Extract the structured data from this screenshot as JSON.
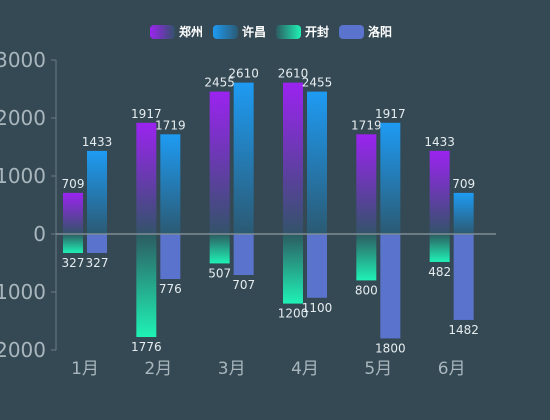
{
  "chart_data": {
    "type": "bar",
    "categories": [
      "1月",
      "2月",
      "3月",
      "4月",
      "5月",
      "6月"
    ],
    "ylim": [
      -2000,
      3000
    ],
    "yticks": [
      3000,
      2000,
      1000,
      0,
      -1000,
      -2000
    ],
    "ytick_labels": [
      "3000",
      "2000",
      "1000",
      "0",
      "1000",
      "2000"
    ],
    "legend_position": "top-center",
    "grid": false,
    "series": [
      {
        "name": "郑州",
        "values": [
          709,
          1917,
          2455,
          2610,
          1719,
          1433
        ],
        "labels": [
          "709",
          "1917",
          "2455",
          "2610",
          "1719",
          "1433"
        ],
        "color_top": "#9b23f0",
        "color_bottom": "#33536a"
      },
      {
        "name": "许昌",
        "values": [
          1433,
          1719,
          2610,
          2455,
          1917,
          709
        ],
        "labels": [
          "1433",
          "1719",
          "2610",
          "2455",
          "1917",
          "709"
        ],
        "color_top": "#1e9bf3",
        "color_bottom": "#2b5a73"
      },
      {
        "name": "开封",
        "values": [
          -327,
          -1776,
          -507,
          -1200,
          -800,
          -482
        ],
        "labels": [
          "327",
          "1776",
          "507",
          "1200",
          "800",
          "482"
        ],
        "color_top": "#2c5b61",
        "color_bottom": "#1ff2b5"
      },
      {
        "name": "洛阳",
        "values": [
          -327,
          -776,
          -707,
          -1100,
          -1800,
          -1482
        ],
        "labels": [
          "327",
          "776",
          "707",
          "1100",
          "1800",
          "1482"
        ],
        "color_top": "#5a73cc",
        "color_bottom": "#5a73cc"
      }
    ]
  }
}
